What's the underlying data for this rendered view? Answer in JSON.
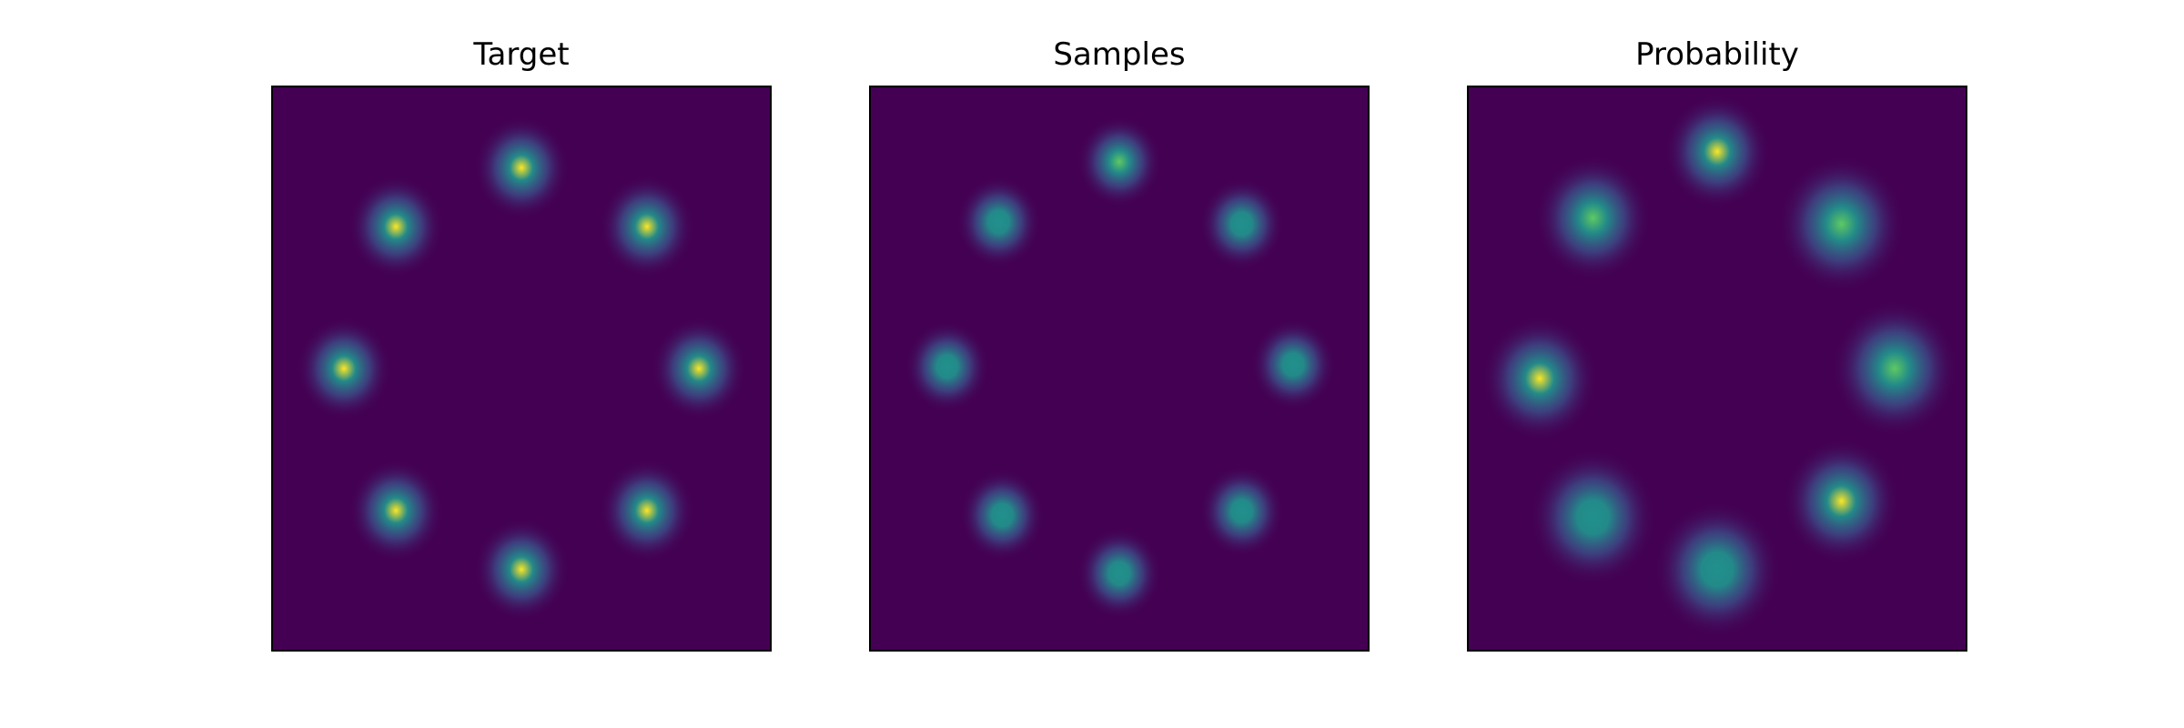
{
  "figure": {
    "background": "#ffffff",
    "colormap": [
      "#440154",
      "#3b528b",
      "#21918c",
      "#5ec962",
      "#fde725"
    ]
  },
  "chart_data": [
    {
      "type": "heatmap",
      "title": "Target",
      "grid": false,
      "axes_visible": false,
      "background_color": "#440154",
      "centers": [
        {
          "x": 0.0,
          "y": 1.0,
          "weight": 1.0,
          "spread": 0.09
        },
        {
          "x": 0.707,
          "y": 0.707,
          "weight": 1.0,
          "spread": 0.09
        },
        {
          "x": 1.0,
          "y": 0.0,
          "weight": 1.0,
          "spread": 0.09
        },
        {
          "x": 0.707,
          "y": -0.707,
          "weight": 1.0,
          "spread": 0.09
        },
        {
          "x": 0.0,
          "y": -1.0,
          "weight": 1.0,
          "spread": 0.09
        },
        {
          "x": -0.707,
          "y": -0.707,
          "weight": 1.0,
          "spread": 0.09
        },
        {
          "x": -1.0,
          "y": 0.0,
          "weight": 1.0,
          "spread": 0.09
        },
        {
          "x": -0.707,
          "y": 0.707,
          "weight": 1.0,
          "spread": 0.09
        }
      ]
    },
    {
      "type": "heatmap",
      "title": "Samples",
      "grid": false,
      "axes_visible": false,
      "background_color": "#440154",
      "centers": [
        {
          "x": 0.0,
          "y": 1.03,
          "weight": 0.8,
          "spread": 0.08
        },
        {
          "x": 0.69,
          "y": 0.72,
          "weight": 0.7,
          "spread": 0.08
        },
        {
          "x": 0.98,
          "y": 0.02,
          "weight": 0.7,
          "spread": 0.08
        },
        {
          "x": 0.69,
          "y": -0.71,
          "weight": 0.75,
          "spread": 0.08
        },
        {
          "x": 0.0,
          "y": -1.02,
          "weight": 0.7,
          "spread": 0.08
        },
        {
          "x": -0.66,
          "y": -0.73,
          "weight": 0.65,
          "spread": 0.08
        },
        {
          "x": -0.97,
          "y": 0.01,
          "weight": 0.75,
          "spread": 0.08
        },
        {
          "x": -0.68,
          "y": 0.73,
          "weight": 0.7,
          "spread": 0.08
        }
      ]
    },
    {
      "type": "heatmap",
      "title": "Probability",
      "grid": false,
      "axes_visible": false,
      "background_color": "#440154",
      "centers": [
        {
          "x": 0.0,
          "y": 1.08,
          "weight": 1.0,
          "spread": 0.1
        },
        {
          "x": 0.7,
          "y": 0.72,
          "weight": 0.85,
          "spread": 0.12
        },
        {
          "x": 1.0,
          "y": 0.0,
          "weight": 0.8,
          "spread": 0.12
        },
        {
          "x": 0.7,
          "y": -0.66,
          "weight": 1.0,
          "spread": 0.11
        },
        {
          "x": 0.0,
          "y": -1.0,
          "weight": 0.75,
          "spread": 0.12
        },
        {
          "x": -0.7,
          "y": -0.74,
          "weight": 0.65,
          "spread": 0.12
        },
        {
          "x": -1.0,
          "y": -0.05,
          "weight": 1.0,
          "spread": 0.11
        },
        {
          "x": -0.7,
          "y": 0.75,
          "weight": 0.9,
          "spread": 0.11
        }
      ]
    }
  ]
}
